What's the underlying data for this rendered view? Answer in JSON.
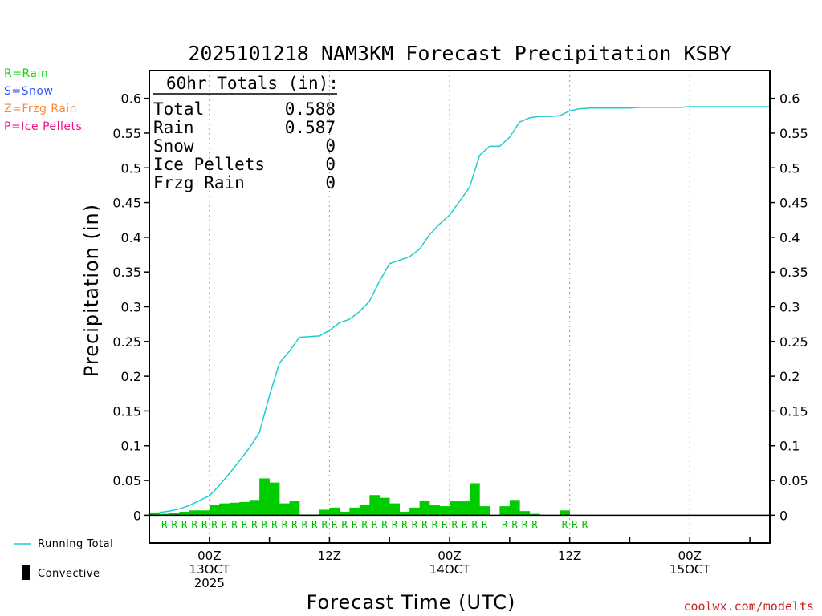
{
  "chart_data": {
    "type": "bar",
    "title": "2025101218 NAM3KM Forecast Precipitation KSBY",
    "xlabel": "Forecast Time (UTC)",
    "ylabel": "Precipitation (in)",
    "ylim": [
      -0.04,
      0.64
    ],
    "yticks": [
      "0",
      "0.05",
      "0.1",
      "0.15",
      "0.2",
      "0.25",
      "0.3",
      "0.35",
      "0.4",
      "0.45",
      "0.5",
      "0.55",
      "0.6"
    ],
    "xlim_hours": [
      -6,
      56
    ],
    "xticks": [
      {
        "hour": 0,
        "lines": [
          "00Z",
          "13OCT",
          "2025"
        ]
      },
      {
        "hour": 12,
        "lines": [
          "12Z"
        ]
      },
      {
        "hour": 24,
        "lines": [
          "00Z",
          "14OCT"
        ]
      },
      {
        "hour": 36,
        "lines": [
          "12Z"
        ]
      },
      {
        "hour": 48,
        "lines": [
          "00Z",
          "15OCT"
        ]
      }
    ],
    "hourly_hours": [
      -5,
      -4,
      -3,
      -2,
      -1,
      0,
      1,
      2,
      3,
      4,
      5,
      6,
      7,
      8,
      9,
      10,
      11,
      12,
      13,
      14,
      15,
      16,
      17,
      18,
      19,
      20,
      21,
      22,
      23,
      24,
      25,
      26,
      27,
      28,
      29,
      30,
      31,
      32,
      33,
      34,
      35,
      36,
      37,
      38,
      39,
      40,
      41,
      42,
      43,
      44,
      45,
      46,
      47,
      48,
      49,
      50,
      51,
      52,
      53,
      54,
      55
    ],
    "hourly_precip": [
      0.004,
      0.002,
      0.003,
      0.005,
      0.007,
      0.007,
      0.015,
      0.017,
      0.018,
      0.019,
      0.022,
      0.053,
      0.047,
      0.017,
      0.02,
      0.001,
      0.001,
      0.008,
      0.011,
      0.005,
      0.011,
      0.015,
      0.029,
      0.025,
      0.017,
      0.005,
      0.011,
      0.021,
      0.015,
      0.013,
      0.02,
      0.02,
      0.046,
      0.013,
      0,
      0.013,
      0.022,
      0.006,
      0.002,
      0,
      0,
      0.007,
      0,
      0,
      0,
      0,
      0,
      0,
      0,
      0,
      0,
      0,
      0,
      0,
      0,
      0,
      0,
      0,
      0,
      0,
      0
    ],
    "series": [
      {
        "name": "Running Total",
        "hours": [
          -5,
          -4,
          -3,
          -2,
          -1,
          0,
          1,
          2,
          3,
          4,
          5,
          6,
          7,
          8,
          9,
          10,
          11,
          12,
          13,
          14,
          15,
          16,
          17,
          18,
          19,
          20,
          21,
          22,
          23,
          24,
          25,
          26,
          27,
          28,
          29,
          30,
          31,
          32,
          33,
          34,
          35,
          36,
          37,
          38,
          39,
          40,
          41,
          42,
          43,
          44,
          45,
          46,
          47,
          48,
          49,
          50,
          51,
          52,
          53,
          54,
          55,
          56
        ],
        "values": [
          0.004,
          0.006,
          0.009,
          0.014,
          0.021,
          0.028,
          0.043,
          0.06,
          0.078,
          0.097,
          0.119,
          0.172,
          0.219,
          0.236,
          0.256,
          0.257,
          0.258,
          0.266,
          0.277,
          0.282,
          0.293,
          0.308,
          0.337,
          0.362,
          0.367,
          0.372,
          0.383,
          0.404,
          0.419,
          0.432,
          0.452,
          0.472,
          0.518,
          0.531,
          0.531,
          0.544,
          0.566,
          0.572,
          0.574,
          0.574,
          0.575,
          0.582,
          0.585,
          0.586,
          0.586,
          0.586,
          0.586,
          0.586,
          0.587,
          0.587,
          0.587,
          0.587,
          0.587,
          0.588,
          0.588,
          0.588,
          0.588,
          0.588,
          0.588,
          0.588,
          0.588,
          0.588
        ]
      },
      {
        "name": "Convective",
        "values": []
      }
    ],
    "ptype_hours": [
      -4,
      -3,
      -2,
      -1,
      0,
      1,
      2,
      3,
      4,
      5,
      6,
      7,
      8,
      9,
      10,
      11,
      12,
      13,
      14,
      15,
      16,
      17,
      18,
      19,
      20,
      21,
      22,
      23,
      24,
      25,
      26,
      27,
      28,
      30,
      31,
      32,
      33,
      36,
      37,
      38
    ],
    "ptype_symbol": "R",
    "totals_box": {
      "header": "60hr Totals (in):",
      "rows": [
        {
          "label": "Total",
          "value": "0.588"
        },
        {
          "label": "Rain",
          "value": "0.587"
        },
        {
          "label": "Snow",
          "value": "0"
        },
        {
          "label": "Ice Pellets",
          "value": "0"
        },
        {
          "label": "Frzg Rain",
          "value": "0"
        }
      ]
    },
    "ptype_legend": [
      {
        "text": "R=Rain",
        "color": "#00dd00"
      },
      {
        "text": "S=Snow",
        "color": "#3355ff"
      },
      {
        "text": "Z=Frzg Rain",
        "color": "#ff8833"
      },
      {
        "text": "P=Ice Pellets",
        "color": "#ee1188"
      }
    ],
    "legend": [
      {
        "text": "Running Total",
        "color": "#22cccc"
      },
      {
        "text": "Convective",
        "color": "#000000"
      }
    ],
    "bar_color": "#00cc00",
    "line_color": "#22cccc",
    "credit": "coolwx.com/modelts"
  }
}
